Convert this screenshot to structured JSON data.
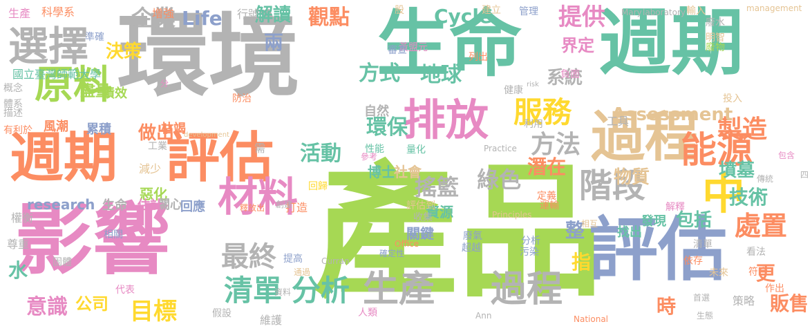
{
  "cloud": {
    "palette": {
      "green": "#66c2a5",
      "orange": "#fc8d62",
      "blue": "#8da0cb",
      "pink": "#e78ac3",
      "lime": "#a6d854",
      "yellow": "#ffd92f",
      "tan": "#e5c494",
      "gray": "#b3b3b3"
    },
    "words": [
      {
        "text": "產品",
        "color": "#a6d854",
        "vertical": false
      },
      {
        "text": "環境",
        "color": "#b3b3b3",
        "vertical": false
      },
      {
        "text": "生命",
        "color": "#66c2a5",
        "vertical": false
      },
      {
        "text": "週期",
        "color": "#66c2a5",
        "vertical": false
      },
      {
        "text": "影響",
        "color": "#e78ac3",
        "vertical": false
      },
      {
        "text": "評估",
        "color": "#8da0cb",
        "vertical": false
      },
      {
        "text": "週期",
        "color": "#fc8d62",
        "vertical": false
      },
      {
        "text": "評估",
        "color": "#fc8d62",
        "vertical": false
      },
      {
        "text": "過程",
        "color": "#e5c494",
        "vertical": false
      },
      {
        "text": "選擇",
        "color": "#b3b3b3",
        "vertical": false
      },
      {
        "text": "原料",
        "color": "#a6d854",
        "vertical": false
      },
      {
        "text": "排放",
        "color": "#e78ac3",
        "vertical": false
      },
      {
        "text": "材料",
        "color": "#e78ac3",
        "vertical": false
      },
      {
        "text": "生產",
        "color": "#b3b3b3",
        "vertical": false
      },
      {
        "text": "過程",
        "color": "#b3b3b3",
        "vertical": false
      },
      {
        "text": "能源",
        "color": "#fc8d62",
        "vertical": false
      },
      {
        "text": "中",
        "color": "#ffd92f",
        "vertical": false
      },
      {
        "text": "階段",
        "color": "#b3b3b3",
        "vertical": false
      },
      {
        "text": "服務",
        "color": "#ffd92f",
        "vertical": false
      },
      {
        "text": "清單",
        "color": "#66c2a5",
        "vertical": false
      },
      {
        "text": "分析",
        "color": "#66c2a5",
        "vertical": false
      },
      {
        "text": "目標",
        "color": "#ffd92f",
        "vertical": false
      },
      {
        "text": "最終",
        "color": "#b3b3b3",
        "vertical": false
      },
      {
        "text": "處置",
        "color": "#fc8d62",
        "vertical": false
      },
      {
        "text": "製造",
        "color": "#fc8d62",
        "vertical": false
      },
      {
        "text": "企業",
        "color": "#b3b3b3",
        "vertical": false
      },
      {
        "text": "Life",
        "color": "#8da0cb",
        "vertical": false
      },
      {
        "text": "Cycle",
        "color": "#66c2a5",
        "vertical": false
      },
      {
        "text": "Assessment",
        "color": "#e5c494",
        "vertical": false
      },
      {
        "text": "research",
        "color": "#8da0cb",
        "vertical": false
      },
      {
        "text": "方法",
        "color": "#b3b3b3",
        "vertical": false
      },
      {
        "text": "地球",
        "color": "#66c2a5",
        "vertical": false
      },
      {
        "text": "方式",
        "color": "#66c2a5",
        "vertical": false
      },
      {
        "text": "觀點",
        "color": "#fc8d62",
        "vertical": false
      },
      {
        "text": "解讀",
        "color": "#66c2a5",
        "vertical": false
      },
      {
        "text": "提供",
        "color": "#e78ac3",
        "vertical": false
      },
      {
        "text": "界定",
        "color": "#e78ac3",
        "vertical": false
      },
      {
        "text": "綠色",
        "color": "#b3b3b3",
        "vertical": false
      },
      {
        "text": "環保",
        "color": "#66c2a5",
        "vertical": false
      },
      {
        "text": "活動",
        "color": "#66c2a5",
        "vertical": false
      },
      {
        "text": "搖籃",
        "color": "#b3b3b3",
        "vertical": false
      },
      {
        "text": "潛在",
        "color": "#fc8d62",
        "vertical": false
      },
      {
        "text": "墳墓",
        "color": "#66c2a5",
        "vertical": false
      },
      {
        "text": "技術",
        "color": "#66c2a5",
        "vertical": false
      },
      {
        "text": "物質",
        "color": "#e5c494",
        "vertical": false
      },
      {
        "text": "包括",
        "color": "#66c2a5",
        "vertical": false
      },
      {
        "text": "整",
        "color": "#8da0cb",
        "vertical": false
      },
      {
        "text": "指",
        "color": "#ffd92f",
        "vertical": false
      },
      {
        "text": "更",
        "color": "#fc8d62",
        "vertical": false
      },
      {
        "text": "時",
        "color": "#fc8d62",
        "vertical": false
      },
      {
        "text": "販售",
        "color": "#fc8d62",
        "vertical": false
      },
      {
        "text": "意識",
        "color": "#e78ac3",
        "vertical": false
      },
      {
        "text": "公司",
        "color": "#ffd92f",
        "vertical": false
      },
      {
        "text": "系統",
        "color": "#b3b3b3",
        "vertical": false
      },
      {
        "text": "決策",
        "color": "#ffd92f",
        "vertical": false
      },
      {
        "text": "兩",
        "color": "#8da0cb",
        "vertical": false
      },
      {
        "text": "做出",
        "color": "#fc8d62",
        "vertical": false
      },
      {
        "text": "國立臺灣師範大學",
        "color": "#66c2a5",
        "vertical": false
      },
      {
        "text": "盡量",
        "color": "#a6d854",
        "vertical": false
      },
      {
        "text": "績效",
        "color": "#a6d854",
        "vertical": false
      },
      {
        "text": "風潮",
        "color": "#fc8d62",
        "vertical": false
      },
      {
        "text": "累積",
        "color": "#8da0cb",
        "vertical": false
      },
      {
        "text": "枯竭",
        "color": "#fc8d62",
        "vertical": false
      },
      {
        "text": "工業",
        "color": "#b3b3b3",
        "vertical": false
      },
      {
        "text": "減少",
        "color": "#e5c494",
        "vertical": false
      },
      {
        "text": "惡化",
        "color": "#a6d854",
        "vertical": false
      },
      {
        "text": "關心",
        "color": "#b3b3b3",
        "vertical": false
      },
      {
        "text": "回應",
        "color": "#8da0cb",
        "vertical": false
      },
      {
        "text": "生命",
        "color": "#b3b3b3",
        "vertical": false
      },
      {
        "text": "估計",
        "color": "#e78ac3",
        "vertical": false
      },
      {
        "text": "資源",
        "color": "#66c2a5",
        "vertical": false
      },
      {
        "text": "博士",
        "color": "#66c2a5",
        "vertical": false
      },
      {
        "text": "社會",
        "color": "#e5c494",
        "vertical": false
      },
      {
        "text": "發現",
        "color": "#66c2a5",
        "vertical": false
      },
      {
        "text": "找出",
        "color": "#66c2a5",
        "vertical": false
      },
      {
        "text": "關鍵",
        "color": "#8da0cb",
        "vertical": false
      },
      {
        "text": "收集",
        "color": "#b3b3b3",
        "vertical": false
      },
      {
        "text": "科學系",
        "color": "#fc8d62",
        "vertical": false
      },
      {
        "text": "生產",
        "color": "#e78ac3",
        "vertical": false
      },
      {
        "text": "增強",
        "color": "#fc8d62",
        "vertical": false
      },
      {
        "text": "行號",
        "color": "#b3b3b3",
        "vertical": false
      },
      {
        "text": "黃盟元",
        "color": "#e78ac3",
        "vertical": false
      },
      {
        "text": "股",
        "color": "#e5c494",
        "vertical": false
      },
      {
        "text": "建立",
        "color": "#e5c494",
        "vertical": false
      },
      {
        "text": "管理",
        "color": "#8da0cb",
        "vertical": false
      },
      {
        "text": "Mary",
        "color": "#b3b3b3",
        "vertical": false
      },
      {
        "text": "laboratory",
        "color": "#b3b3b3",
        "vertical": false
      },
      {
        "text": "輸入",
        "color": "#e5c494",
        "vertical": false
      },
      {
        "text": "management",
        "color": "#e5c494",
        "vertical": false
      },
      {
        "text": "準確",
        "color": "#8da0cb",
        "vertical": false
      },
      {
        "text": "審查",
        "color": "#8da0cb",
        "vertical": false
      },
      {
        "text": "列出",
        "color": "#fc8d62",
        "vertical": false
      },
      {
        "text": "負面",
        "color": "#e78ac3",
        "vertical": false
      },
      {
        "text": "廢水",
        "color": "#b3b3b3",
        "vertical": false
      },
      {
        "text": "明智",
        "color": "#e5c494",
        "vertical": false
      },
      {
        "text": "廢物",
        "color": "#a6d854",
        "vertical": false
      },
      {
        "text": "概念",
        "color": "#b3b3b3",
        "vertical": false
      },
      {
        "text": "體系",
        "color": "#b3b3b3",
        "vertical": false
      },
      {
        "text": "描述",
        "color": "#b3b3b3",
        "vertical": false
      },
      {
        "text": "有利於",
        "color": "#fc8d62",
        "vertical": false
      },
      {
        "text": "防治",
        "color": "#fc8d62",
        "vertical": false
      },
      {
        "text": "自然",
        "color": "#b3b3b3",
        "vertical": false
      },
      {
        "text": "健康",
        "color": "#b3b3b3",
        "vertical": false
      },
      {
        "text": "投入",
        "color": "#e5c494",
        "vertical": false
      },
      {
        "text": "工具",
        "color": "#b3b3b3",
        "vertical": false
      },
      {
        "text": "利用",
        "color": "#b3b3b3",
        "vertical": false
      },
      {
        "text": "development",
        "color": "#e5c494",
        "vertical": false
      },
      {
        "text": "需",
        "color": "#b3b3b3",
        "vertical": false
      },
      {
        "text": "回歸",
        "color": "#ffd92f",
        "vertical": false
      },
      {
        "text": "性能",
        "color": "#66c2a5",
        "vertical": false
      },
      {
        "text": "量化",
        "color": "#66c2a5",
        "vertical": false
      },
      {
        "text": "Practice",
        "color": "#b3b3b3",
        "vertical": false
      },
      {
        "text": "參考",
        "color": "#e78ac3",
        "vertical": false
      },
      {
        "text": "打造",
        "color": "#fc8d62",
        "vertical": false
      },
      {
        "text": "釋放出",
        "color": "#fc8d62",
        "vertical": false
      },
      {
        "text": "創建",
        "color": "#b3b3b3",
        "vertical": false
      },
      {
        "text": "評估到",
        "color": "#e5c494",
        "vertical": false
      },
      {
        "text": "Principles",
        "color": "#e5c494",
        "vertical": false
      },
      {
        "text": "相互",
        "color": "#e5c494",
        "vertical": false
      },
      {
        "text": "運輸",
        "color": "#fc8d62",
        "vertical": false
      },
      {
        "text": "定義",
        "color": "#fc8d62",
        "vertical": false
      },
      {
        "text": "解釋",
        "color": "#e78ac3",
        "vertical": false
      },
      {
        "text": "傳統",
        "color": "#b3b3b3",
        "vertical": false
      },
      {
        "text": "包含",
        "color": "#e78ac3",
        "vertical": false
      },
      {
        "text": "四",
        "color": "#b3b3b3",
        "vertical": false
      },
      {
        "text": "權衡",
        "color": "#b3b3b3",
        "vertical": false
      },
      {
        "text": "相關",
        "color": "#8da0cb",
        "vertical": false
      },
      {
        "text": "尊重",
        "color": "#b3b3b3",
        "vertical": false
      },
      {
        "text": "固體",
        "color": "#b3b3b3",
        "vertical": false
      },
      {
        "text": "代表",
        "color": "#e78ac3",
        "vertical": false
      },
      {
        "text": "假設",
        "color": "#b3b3b3",
        "vertical": false
      },
      {
        "text": "維護",
        "color": "#b3b3b3",
        "vertical": false
      },
      {
        "text": "資料",
        "color": "#b3b3b3",
        "vertical": false
      },
      {
        "text": "通過",
        "color": "#e5c494",
        "vertical": false
      },
      {
        "text": "提高",
        "color": "#8da0cb",
        "vertical": false
      },
      {
        "text": "Curran",
        "color": "#b3b3b3",
        "vertical": false
      },
      {
        "text": "確定性",
        "color": "#8da0cb",
        "vertical": false
      },
      {
        "text": "Office",
        "color": "#fc8d62",
        "vertical": false
      },
      {
        "text": "人類",
        "color": "#e78ac3",
        "vertical": false
      },
      {
        "text": "Ann",
        "color": "#b3b3b3",
        "vertical": false
      },
      {
        "text": "廢氣",
        "color": "#8da0cb",
        "vertical": false
      },
      {
        "text": "超越",
        "color": "#8da0cb",
        "vertical": false
      },
      {
        "text": "分析",
        "color": "#8da0cb",
        "vertical": false
      },
      {
        "text": "污染",
        "color": "#8da0cb",
        "vertical": false
      },
      {
        "text": "清單",
        "color": "#b3b3b3",
        "vertical": false
      },
      {
        "text": "看法",
        "color": "#b3b3b3",
        "vertical": false
      },
      {
        "text": "依存",
        "color": "#fc8d62",
        "vertical": false
      },
      {
        "text": "未來",
        "color": "#e5c494",
        "vertical": false
      },
      {
        "text": "符合",
        "color": "#fc8d62",
        "vertical": false
      },
      {
        "text": "作出",
        "color": "#fc8d62",
        "vertical": false
      },
      {
        "text": "首選",
        "color": "#b3b3b3",
        "vertical": false
      },
      {
        "text": "策略",
        "color": "#b3b3b3",
        "vertical": false
      },
      {
        "text": "生態",
        "color": "#b3b3b3",
        "vertical": false
      },
      {
        "text": "National",
        "color": "#fc8d62",
        "vertical": false
      },
      {
        "text": "分",
        "color": "#e78ac3",
        "vertical": false
      },
      {
        "text": "risk",
        "color": "#b3b3b3",
        "vertical": false
      },
      {
        "text": "水",
        "color": "#66c2a5",
        "vertical": false
      }
    ]
  }
}
